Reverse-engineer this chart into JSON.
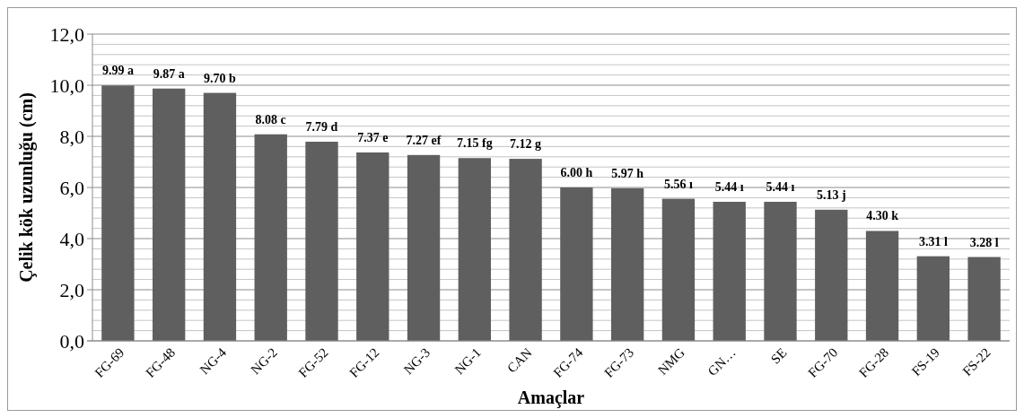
{
  "chart_data": {
    "type": "bar",
    "xlabel": "Amaçlar",
    "ylabel": "Çelik kök uzunluğu (cm)",
    "categories": [
      "FG-69",
      "FG-48",
      "NG-4",
      "NG-2",
      "FG-52",
      "FG-12",
      "NG-3",
      "NG-1",
      "CAN",
      "FG-74",
      "FG-73",
      "NMG",
      "GN…",
      "SE",
      "FG-70",
      "FG-28",
      "FS-19",
      "FS-22"
    ],
    "values": [
      9.99,
      9.87,
      9.7,
      8.08,
      7.79,
      7.37,
      7.27,
      7.15,
      7.12,
      6.0,
      5.97,
      5.56,
      5.44,
      5.44,
      5.13,
      4.3,
      3.31,
      3.28
    ],
    "value_labels": [
      "9.99 a",
      "9.87 a",
      "9.70 b",
      "8.08 c",
      "7.79 d",
      "7.37 e",
      "7.27 ef",
      "7.15 fg",
      "7.12 g",
      "6.00 h",
      "5.97 h",
      "5.56 ı",
      "5.44 ı",
      "5.44 ı",
      "5.13 j",
      "4.30 k",
      "3.31 l",
      "3.28 l"
    ],
    "color": "#5f5f5f",
    "ylim": [
      0,
      12
    ],
    "yticks": [
      {
        "value": 0,
        "label": "0,0"
      },
      {
        "value": 0.4,
        "label": null
      },
      {
        "value": 0.8,
        "label": null
      },
      {
        "value": 1.2,
        "label": null
      },
      {
        "value": 1.6,
        "label": null
      },
      {
        "value": 2,
        "label": "2,0"
      },
      {
        "value": 2.4,
        "label": null
      },
      {
        "value": 2.8,
        "label": null
      },
      {
        "value": 3.2,
        "label": null
      },
      {
        "value": 3.6,
        "label": null
      },
      {
        "value": 4,
        "label": "4,0"
      },
      {
        "value": 4.4,
        "label": null
      },
      {
        "value": 4.8,
        "label": null
      },
      {
        "value": 5.2,
        "label": null
      },
      {
        "value": 5.6,
        "label": null
      },
      {
        "value": 6,
        "label": "6,0"
      },
      {
        "value": 6.4,
        "label": null
      },
      {
        "value": 6.8,
        "label": null
      },
      {
        "value": 7.2,
        "label": null
      },
      {
        "value": 7.6,
        "label": null
      },
      {
        "value": 8,
        "label": "8,0"
      },
      {
        "value": 8.4,
        "label": null
      },
      {
        "value": 8.8,
        "label": null
      },
      {
        "value": 9.2,
        "label": null
      },
      {
        "value": 9.6,
        "label": null
      },
      {
        "value": 10,
        "label": "10,0"
      },
      {
        "value": 10.4,
        "label": null
      },
      {
        "value": 10.8,
        "label": null
      },
      {
        "value": 11.2,
        "label": null
      },
      {
        "value": 11.6,
        "label": null
      },
      {
        "value": 12,
        "label": "12,0"
      }
    ],
    "grid": "y"
  }
}
